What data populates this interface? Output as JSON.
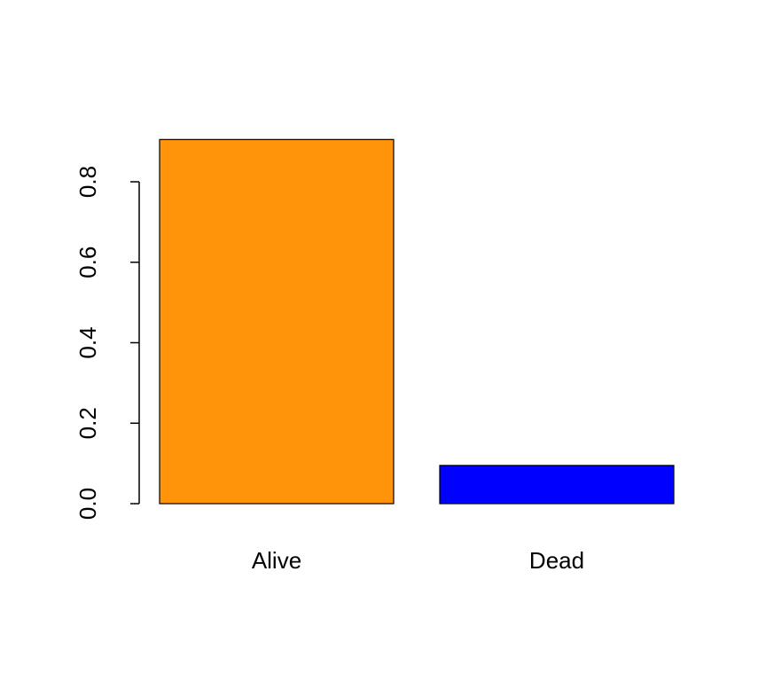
{
  "chart_data": {
    "type": "bar",
    "categories": [
      "Alive",
      "Dead"
    ],
    "values": [
      0.905,
      0.095
    ],
    "colors": [
      "#ff940a",
      "#0000ff"
    ],
    "ylim": [
      0,
      0.95
    ],
    "yticks": [
      {
        "value": 0,
        "label": "0.0"
      },
      0.2,
      0.4,
      0.6,
      0.8
    ]
  }
}
